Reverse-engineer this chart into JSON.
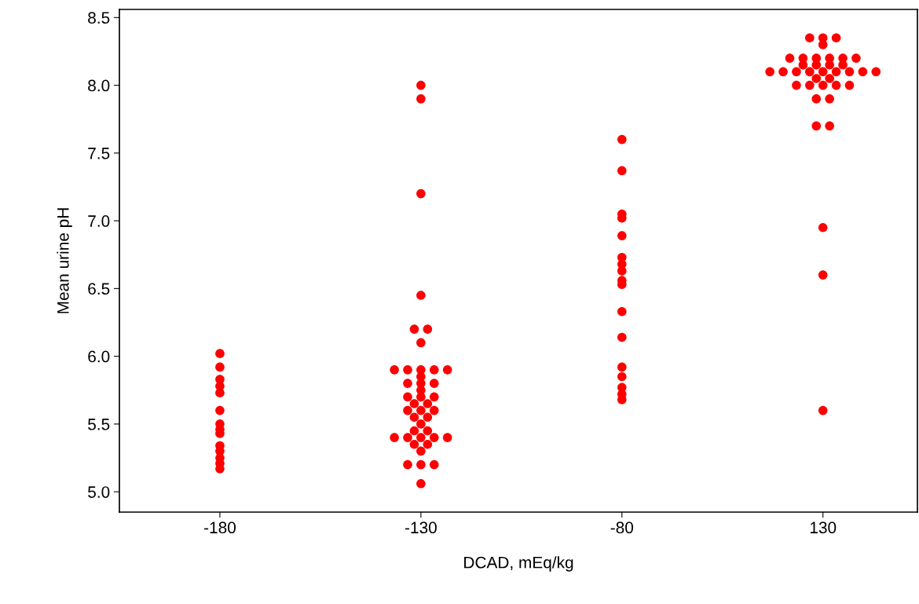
{
  "chart_data": {
    "type": "scatter",
    "xlabel": "DCAD, mEq/kg",
    "ylabel": "Mean urine pH",
    "categories": [
      "-180",
      "-130",
      "-80",
      "130"
    ],
    "ylim": [
      4.85,
      8.56
    ],
    "yticks": [
      {
        "value": 5.0,
        "label": "5.0"
      },
      {
        "value": 5.5,
        "label": "5.5"
      },
      {
        "value": 6.0,
        "label": "6.0"
      },
      {
        "value": 6.5,
        "label": "6.5"
      },
      {
        "value": 7.0,
        "label": "7.0"
      },
      {
        "value": 7.5,
        "label": "7.5"
      },
      {
        "value": 8.0,
        "label": "8.0"
      },
      {
        "value": 8.5,
        "label": "8.5"
      }
    ],
    "grid": false,
    "legend": false,
    "marker": "circle",
    "series": [
      {
        "color": "#ff0000",
        "x": [
          "-180",
          "-180",
          "-180",
          "-180",
          "-180",
          "-180",
          "-180",
          "-180",
          "-180",
          "-180",
          "-180",
          "-180",
          "-180",
          "-180"
        ],
        "values": [
          6.02,
          5.92,
          5.83,
          5.78,
          5.73,
          5.6,
          5.5,
          5.46,
          5.43,
          5.34,
          5.3,
          5.25,
          5.21,
          5.17
        ]
      },
      {
        "color": "#ff0000",
        "x": [
          "-130",
          "-130",
          "-130",
          "-130",
          "-130",
          "-130",
          "-130",
          "-130",
          "-130",
          "-130",
          "-130",
          "-130",
          "-130",
          "-130",
          "-130",
          "-130",
          "-130",
          "-130",
          "-130",
          "-130",
          "-130",
          "-130",
          "-130",
          "-130",
          "-130",
          "-130",
          "-130",
          "-130",
          "-130",
          "-130",
          "-130",
          "-130",
          "-130",
          "-130",
          "-130",
          "-130",
          "-130",
          "-130",
          "-130",
          "-130",
          "-130",
          "-130"
        ],
        "values": [
          8.0,
          7.9,
          7.2,
          6.45,
          6.2,
          6.2,
          6.1,
          5.9,
          5.9,
          5.9,
          5.9,
          5.9,
          5.85,
          5.8,
          5.8,
          5.8,
          5.75,
          5.7,
          5.7,
          5.7,
          5.65,
          5.6,
          5.6,
          5.6,
          5.55,
          5.5,
          5.45,
          5.4,
          5.4,
          5.4,
          5.4,
          5.4,
          5.35,
          5.35,
          5.3,
          5.2,
          5.2,
          5.2,
          5.06,
          5.65,
          5.55,
          5.45
        ]
      },
      {
        "color": "#ff0000",
        "x": [
          "-80",
          "-80",
          "-80",
          "-80",
          "-80",
          "-80",
          "-80",
          "-80",
          "-80",
          "-80",
          "-80",
          "-80",
          "-80",
          "-80",
          "-80",
          "-80",
          "-80"
        ],
        "values": [
          7.6,
          7.37,
          7.05,
          7.02,
          6.89,
          6.73,
          6.68,
          6.63,
          6.56,
          6.53,
          6.33,
          6.14,
          5.92,
          5.85,
          5.77,
          5.72,
          5.68
        ]
      },
      {
        "color": "#ff0000",
        "x": [
          "130",
          "130",
          "130",
          "130",
          "130",
          "130",
          "130",
          "130",
          "130",
          "130",
          "130",
          "130",
          "130",
          "130",
          "130",
          "130",
          "130",
          "130",
          "130",
          "130",
          "130",
          "130",
          "130",
          "130",
          "130",
          "130",
          "130",
          "130",
          "130",
          "130",
          "130",
          "130",
          "130",
          "130",
          "130",
          "130",
          "130"
        ],
        "values": [
          8.35,
          8.35,
          8.35,
          8.3,
          8.2,
          8.2,
          8.2,
          8.2,
          8.2,
          8.2,
          8.15,
          8.15,
          8.15,
          8.15,
          8.1,
          8.1,
          8.1,
          8.1,
          8.1,
          8.1,
          8.1,
          8.1,
          8.1,
          8.05,
          8.05,
          8.0,
          8.0,
          8.0,
          8.0,
          8.0,
          7.9,
          7.9,
          7.7,
          7.7,
          6.95,
          6.6,
          5.6
        ]
      }
    ]
  }
}
